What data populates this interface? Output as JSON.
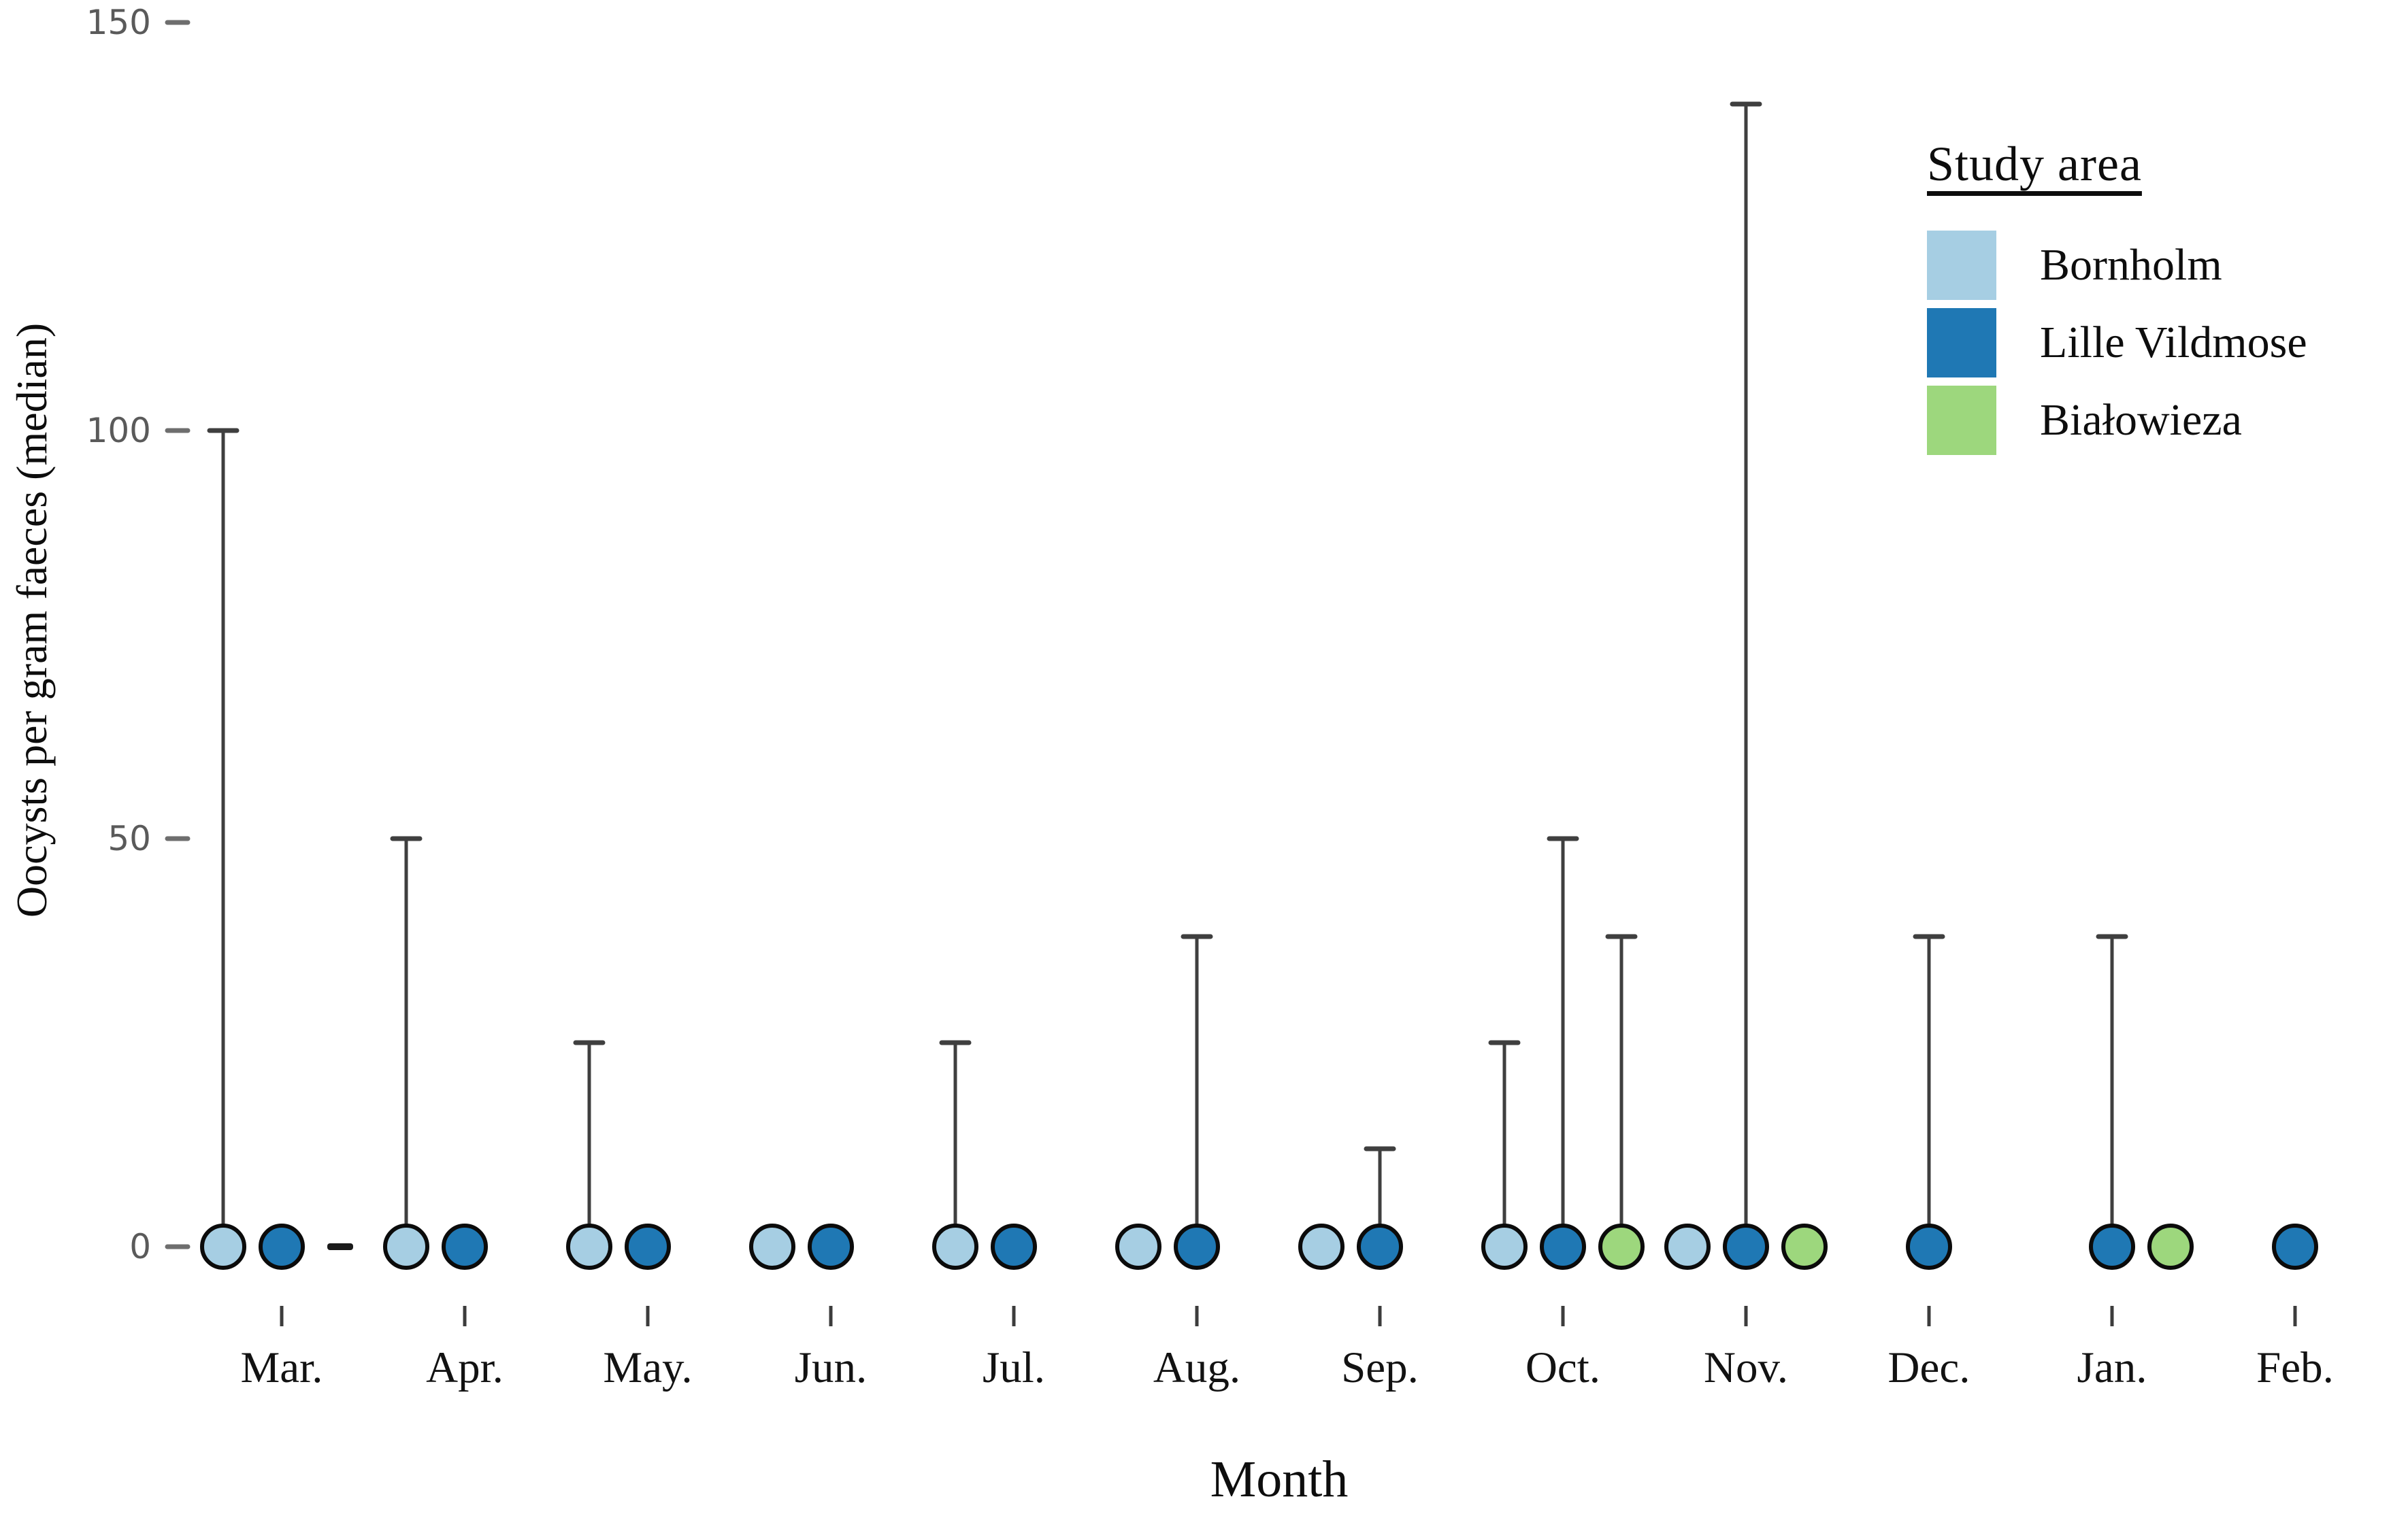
{
  "figure": {
    "y_axis": {
      "title": "Oocysts per gram faeces (median)",
      "ticks": [
        0,
        50,
        100,
        150
      ],
      "range": [
        0,
        150
      ]
    },
    "x_axis": {
      "title": "Month"
    },
    "legend": {
      "title": "Study area",
      "items": [
        {
          "label": "Bornholm",
          "color": "#A6CEE3"
        },
        {
          "label": "Lille Vildmose",
          "color": "#1F78B4"
        },
        {
          "label": "Białowieza",
          "color": "#9DD77D"
        }
      ]
    }
  },
  "chart_data": {
    "type": "scatter",
    "subtype": "lollipop-points-with-upper-whiskers",
    "title": "",
    "xlabel": "Month",
    "ylabel": "Oocysts per gram faeces (median)",
    "ylim": [
      0,
      150
    ],
    "grid": false,
    "legend_position": "top-right",
    "categories": [
      "Mar.",
      "Apr.",
      "May.",
      "Jun.",
      "Jul.",
      "Aug.",
      "Sep.",
      "Oct.",
      "Nov.",
      "Dec.",
      "Jan.",
      "Feb."
    ],
    "series": [
      {
        "name": "Bornholm",
        "color": "#A6CEE3",
        "median": [
          0,
          0,
          0,
          0,
          0,
          0,
          0,
          0,
          0,
          null,
          null,
          null
        ],
        "upper": [
          100,
          50,
          25,
          null,
          25,
          null,
          null,
          25,
          null,
          null,
          null,
          null
        ]
      },
      {
        "name": "Lille Vildmose",
        "color": "#1F78B4",
        "median": [
          0,
          0,
          0,
          0,
          0,
          0,
          0,
          0,
          0,
          0,
          0,
          0
        ],
        "upper": [
          null,
          null,
          null,
          null,
          null,
          38,
          12,
          50,
          140,
          38,
          38,
          null
        ]
      },
      {
        "name": "Białowieza",
        "color": "#9DD77D",
        "median": [
          "dash",
          null,
          null,
          null,
          null,
          null,
          null,
          0,
          0,
          null,
          0,
          null
        ],
        "upper": [
          null,
          null,
          null,
          null,
          null,
          null,
          null,
          38,
          null,
          null,
          null,
          null
        ]
      }
    ],
    "marker_note": "all medians plotted at 0; vertical lines are upper whiskers with end caps; Mar Białowieza shown as a small dash"
  },
  "style": {
    "point_stroke": "#0b0b0b",
    "whisker_color": "#3f3f3f",
    "tick_color": "#3c3c3c",
    "ytick_text_color": "#5a5a5a"
  }
}
